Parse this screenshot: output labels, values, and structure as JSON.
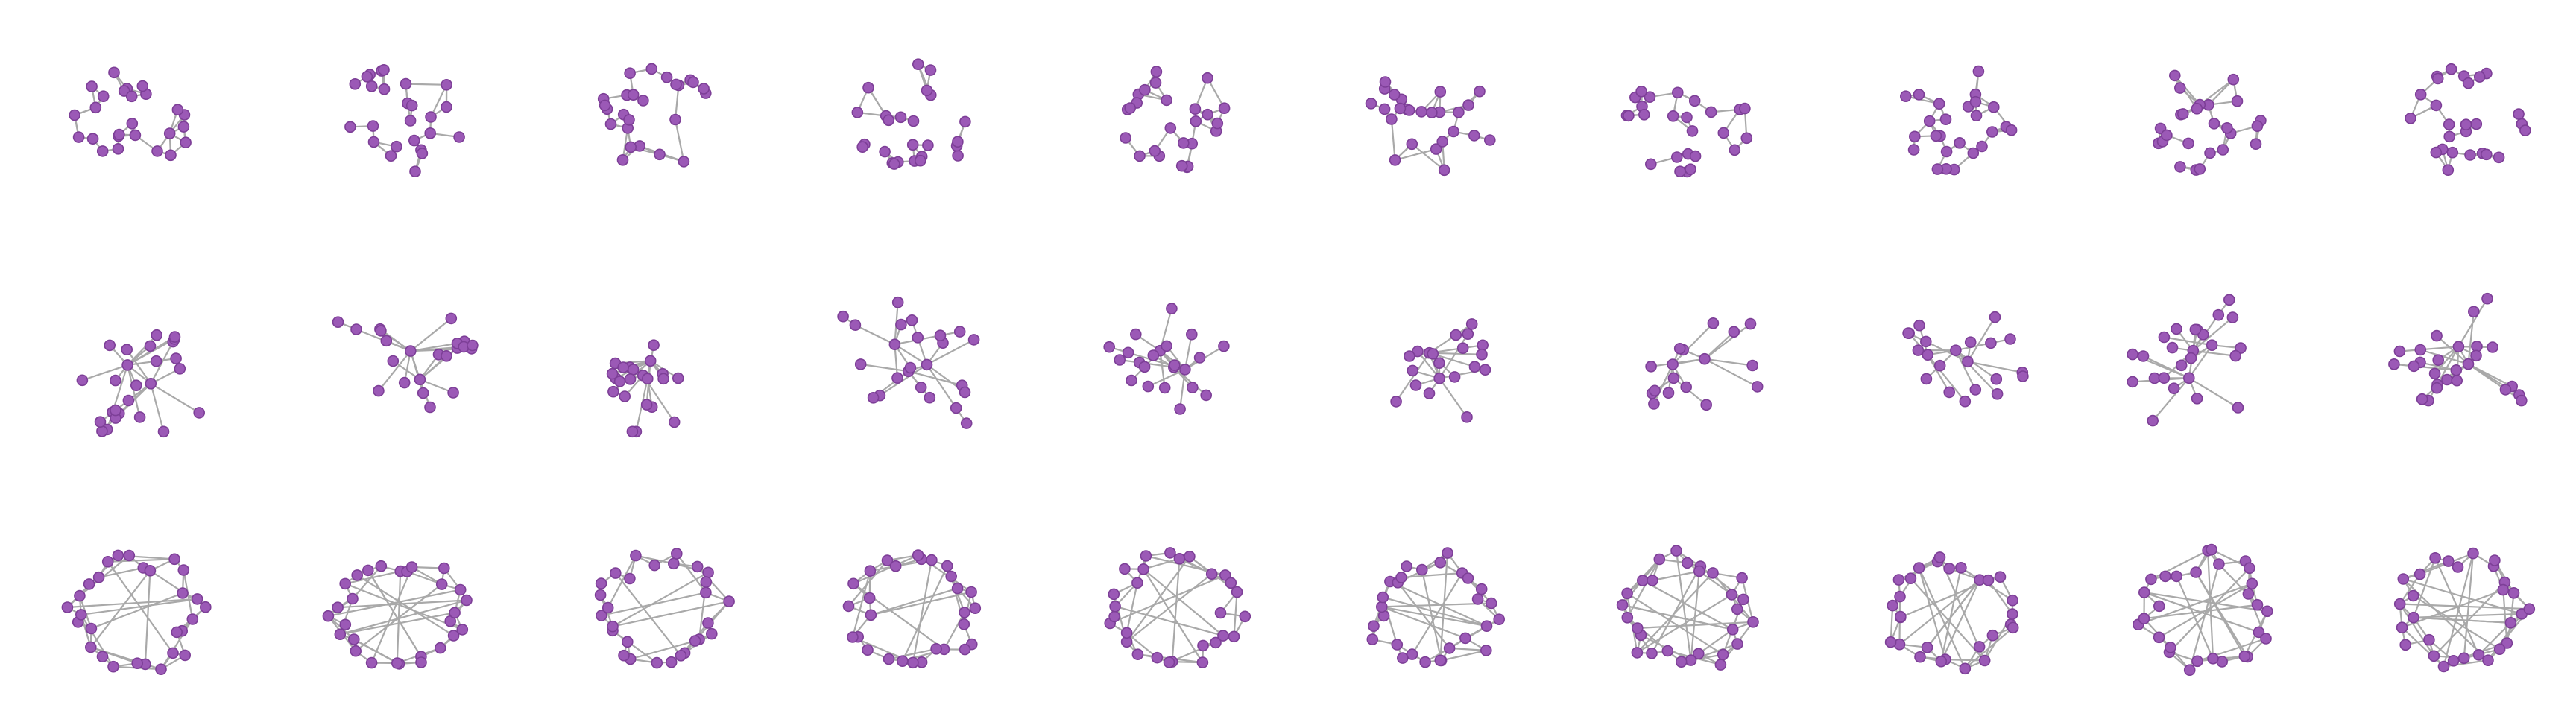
{
  "figure": {
    "background": "#ffffff",
    "node_color": "#9b59b6",
    "edge_color": "#a9a9a9",
    "rows": 3,
    "columns": 10,
    "row_styles": [
      "mixed-random",
      "hub-and-spoke",
      "ring-mesh"
    ],
    "graphs_per_row": 10
  }
}
